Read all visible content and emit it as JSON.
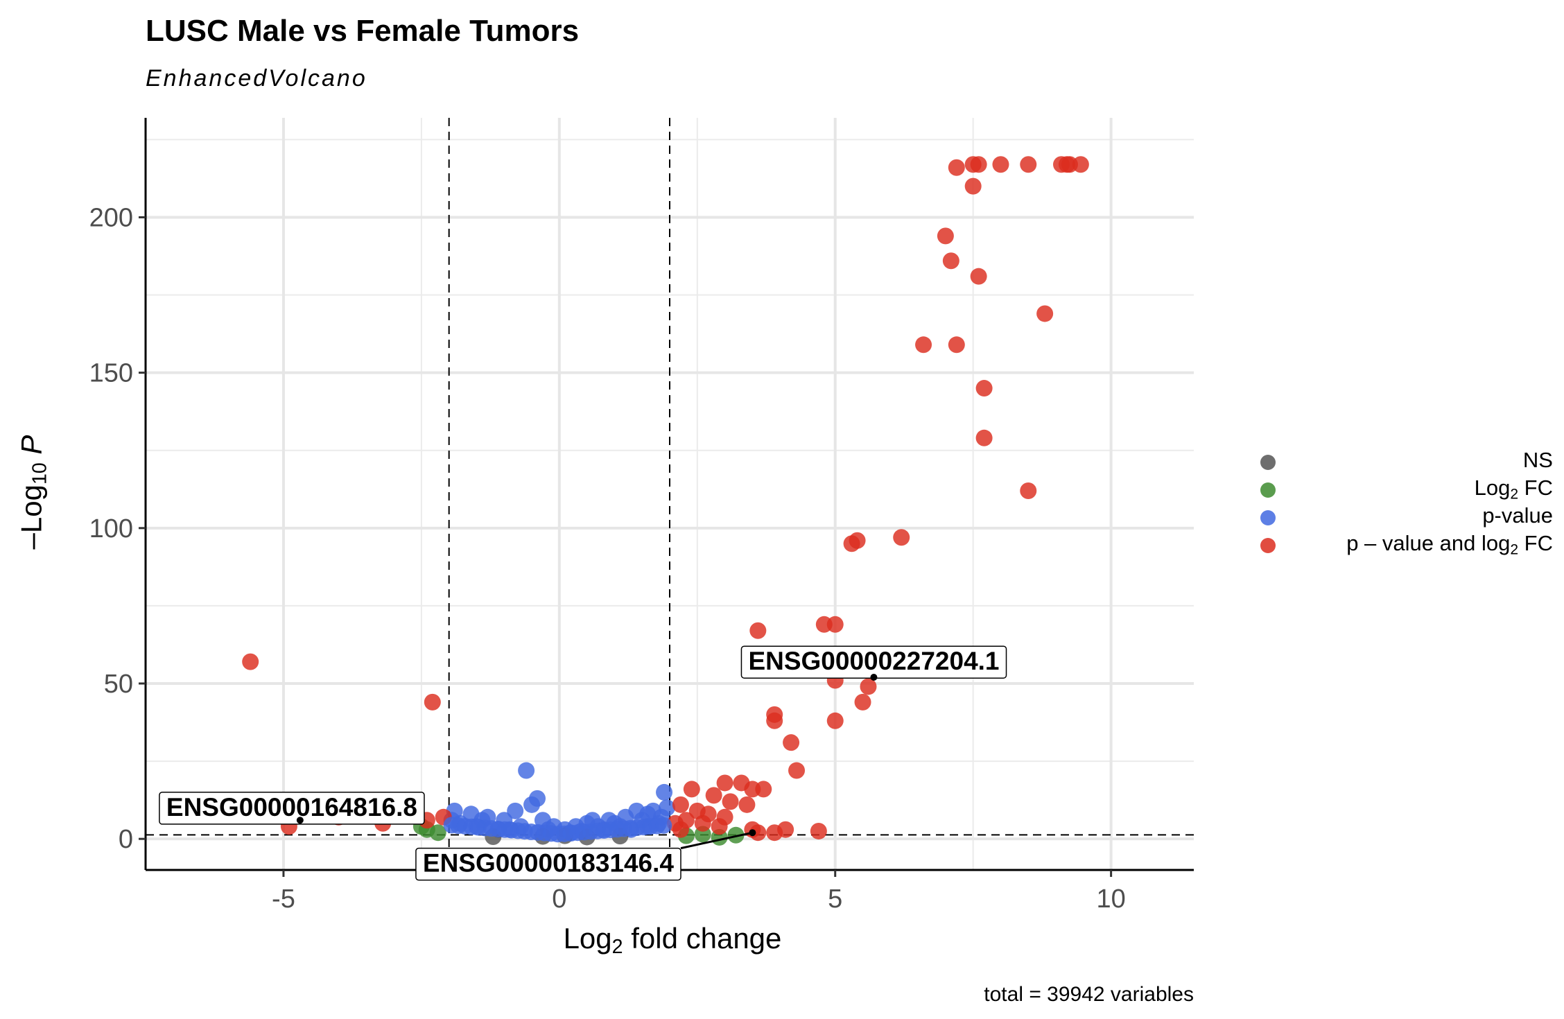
{
  "title": "LUSC Male vs Female Tumors",
  "subtitle": "EnhancedVolcano",
  "caption": "total = 39942 variables",
  "legend": [
    {
      "label": "NS",
      "color": "#555555"
    },
    {
      "label": "Log",
      "sub": "2",
      "label_after": " FC",
      "color": "#3d8b2f"
    },
    {
      "label": "p-value",
      "color": "#4169e1"
    },
    {
      "label": "p – value and log",
      "sub": "2",
      "label_after": " FC",
      "color": "#dc2d1e"
    }
  ],
  "chart_data": {
    "type": "scatter",
    "title": "LUSC Male vs Female Tumors",
    "subtitle": "EnhancedVolcano",
    "xlabel": {
      "pre": "Log",
      "sub": "2",
      "post": " fold change"
    },
    "ylabel": {
      "pre": "–Log",
      "sub": "10",
      "post": " P"
    },
    "xlim": [
      -7.5,
      11.5
    ],
    "ylim": [
      -10,
      232
    ],
    "x_ticks": [
      -5,
      0,
      5,
      10
    ],
    "x_tick_labels": [
      "-5",
      "0",
      "5",
      "10"
    ],
    "y_ticks": [
      0,
      50,
      100,
      150,
      200
    ],
    "y_tick_labels": [
      "0",
      "50",
      "100",
      "150",
      "200"
    ],
    "grid": true,
    "legend_position": "right",
    "cutoff_lines": {
      "log2fc": [
        -2,
        2
      ],
      "neg_log10_p": 1.3
    },
    "series": [
      {
        "name": "NS",
        "color": "#555555",
        "points": [
          [
            0.1,
            1.0
          ],
          [
            -0.3,
            0.8
          ],
          [
            0.5,
            0.6
          ],
          [
            1.1,
            0.9
          ],
          [
            -1.2,
            0.7
          ]
        ]
      },
      {
        "name": "Log2 FC",
        "color": "#3d8b2f",
        "points": [
          [
            -2.4,
            3
          ],
          [
            -2.2,
            2
          ],
          [
            -2.5,
            4
          ],
          [
            2.3,
            1
          ],
          [
            2.6,
            1.5
          ],
          [
            3.2,
            1.2
          ],
          [
            2.9,
            0.5
          ]
        ]
      },
      {
        "name": "p-value",
        "color": "#4169e1",
        "points": [
          [
            -0.6,
            22
          ],
          [
            -0.4,
            13
          ],
          [
            1.9,
            15
          ],
          [
            1.4,
            9
          ],
          [
            0.6,
            6
          ],
          [
            1.0,
            5
          ],
          [
            1.6,
            8
          ],
          [
            -1.9,
            9
          ],
          [
            -1.6,
            8
          ],
          [
            -1.3,
            7
          ],
          [
            -1.0,
            6
          ],
          [
            -0.8,
            9
          ],
          [
            -0.5,
            11
          ],
          [
            -0.3,
            6
          ],
          [
            -0.1,
            4
          ],
          [
            0.1,
            3
          ],
          [
            0.3,
            4
          ],
          [
            0.5,
            5
          ],
          [
            0.7,
            4
          ],
          [
            0.9,
            6
          ],
          [
            1.2,
            7
          ],
          [
            1.5,
            6
          ],
          [
            1.7,
            9
          ],
          [
            1.85,
            7
          ],
          [
            1.95,
            10
          ],
          [
            -1.8,
            5
          ],
          [
            -1.5,
            4
          ],
          [
            -1.1,
            3
          ],
          [
            -0.9,
            3
          ],
          [
            -0.7,
            4
          ],
          [
            0.2,
            2
          ],
          [
            0.4,
            2.5
          ],
          [
            0.8,
            3
          ],
          [
            1.1,
            4
          ],
          [
            1.3,
            3
          ],
          [
            1.6,
            4
          ],
          [
            1.8,
            5
          ],
          [
            -1.95,
            6
          ],
          [
            -1.4,
            6
          ],
          [
            -0.2,
            3
          ]
        ]
      },
      {
        "name": "p-value and log2 FC",
        "color": "#dc2d1e",
        "points": [
          [
            7.5,
            217
          ],
          [
            7.6,
            217
          ],
          [
            8.0,
            217
          ],
          [
            8.5,
            217
          ],
          [
            9.1,
            217
          ],
          [
            9.2,
            217
          ],
          [
            9.25,
            217
          ],
          [
            9.45,
            217
          ],
          [
            7.2,
            216
          ],
          [
            7.5,
            210
          ],
          [
            7.0,
            194
          ],
          [
            7.1,
            186
          ],
          [
            7.6,
            181
          ],
          [
            8.8,
            169
          ],
          [
            6.6,
            159
          ],
          [
            7.2,
            159
          ],
          [
            7.7,
            145
          ],
          [
            7.7,
            129
          ],
          [
            8.5,
            112
          ],
          [
            6.2,
            97
          ],
          [
            5.3,
            95
          ],
          [
            5.4,
            96
          ],
          [
            4.8,
            69
          ],
          [
            5.0,
            69
          ],
          [
            3.6,
            67
          ],
          [
            -5.6,
            57
          ],
          [
            5.0,
            51
          ],
          [
            5.6,
            49
          ],
          [
            5.5,
            44
          ],
          [
            -2.3,
            44
          ],
          [
            3.9,
            40
          ],
          [
            3.9,
            38
          ],
          [
            5.0,
            38
          ],
          [
            4.2,
            31
          ],
          [
            4.3,
            22
          ],
          [
            3.0,
            18
          ],
          [
            3.3,
            18
          ],
          [
            2.4,
            16
          ],
          [
            3.5,
            16
          ],
          [
            3.7,
            16
          ],
          [
            2.8,
            14
          ],
          [
            3.1,
            12
          ],
          [
            3.4,
            11
          ],
          [
            2.2,
            11
          ],
          [
            2.5,
            9
          ],
          [
            2.7,
            8
          ],
          [
            3.0,
            7
          ],
          [
            2.3,
            6
          ],
          [
            2.6,
            5
          ],
          [
            2.1,
            5
          ],
          [
            2.9,
            4
          ],
          [
            3.6,
            2
          ],
          [
            3.9,
            2
          ],
          [
            4.1,
            3
          ],
          [
            4.7,
            2.5
          ],
          [
            3.5,
            3
          ],
          [
            2.2,
            3
          ],
          [
            -2.4,
            6
          ],
          [
            -2.1,
            7
          ],
          [
            -3.2,
            5
          ],
          [
            -4.0,
            7
          ],
          [
            -4.9,
            4
          ]
        ]
      }
    ],
    "labels": [
      {
        "text": "ENSG00000227204.1",
        "x": 5.7,
        "y": 52
      },
      {
        "text": "ENSG00000164816.8",
        "x": -4.7,
        "y": 6
      },
      {
        "text": "ENSG00000183146.4",
        "x": 3.5,
        "y": 2
      }
    ]
  }
}
